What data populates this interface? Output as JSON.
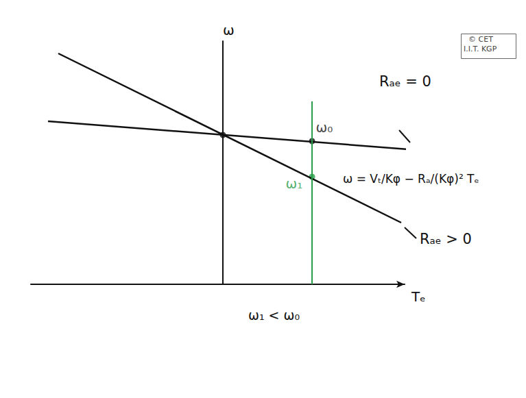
{
  "chart_data": {
    "type": "line",
    "x_label": "Tₑ",
    "y_label": "ω",
    "xlim": [
      -2.8,
      2.65
    ],
    "ylim": [
      0,
      3.55
    ],
    "tick_labels": false,
    "grid": false,
    "series": [
      {
        "name": "Rₐₑ = 0",
        "color": "#111111",
        "x": [
          -2.55,
          2.7
        ],
        "values": [
          2.38,
          1.97
        ]
      },
      {
        "name": "Rₐₑ > 0",
        "color": "#111111",
        "x": [
          -2.4,
          2.6
        ],
        "values": [
          3.37,
          0.9
        ]
      }
    ],
    "marker_lines": [
      {
        "x": 1.3,
        "y_range": [
          0,
          2.67
        ],
        "color": "#2a9d4b"
      }
    ],
    "points": [
      {
        "x": 1.3,
        "y": 2.09,
        "label": "ω₀",
        "color": "#111111"
      },
      {
        "x": 1.3,
        "y": 1.57,
        "label": "ω₁",
        "color": "#2a9d4b"
      },
      {
        "x": 0,
        "y": 2.18,
        "color": "#111111"
      }
    ],
    "annotations": [
      "ω = Vₜ/Kφ − Rₐ/(Kφ)² Tₑ",
      "ω₁ < ω₀",
      "© CET",
      "I.I.T. KGP"
    ]
  }
}
